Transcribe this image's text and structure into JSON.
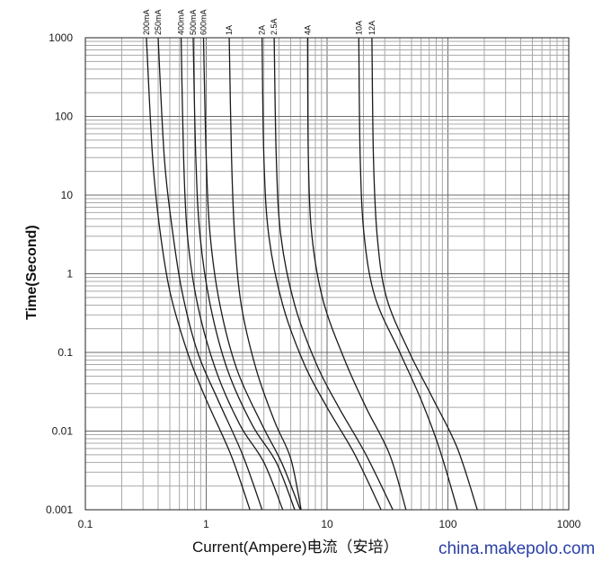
{
  "chart_data": {
    "type": "line",
    "xlabel": "Current(Ampere)电流（安培）",
    "ylabel": "Time(Second)",
    "x_scale": "log",
    "y_scale": "log",
    "xlim": [
      0.1,
      1000
    ],
    "ylim": [
      0.001,
      1000
    ],
    "grid": true,
    "x_ticks": [
      "0.1",
      "1",
      "10",
      "100",
      "1000"
    ],
    "y_ticks": [
      "1000",
      "100",
      "10",
      "1",
      "0.1",
      "0.01",
      "0.001"
    ],
    "series": [
      {
        "name": "200mA",
        "points": [
          [
            0.32,
            1000
          ],
          [
            0.36,
            30
          ],
          [
            0.41,
            4
          ],
          [
            0.5,
            0.6
          ],
          [
            0.7,
            0.1
          ],
          [
            1.0,
            0.025
          ],
          [
            1.6,
            0.005
          ],
          [
            2.3,
            0.001
          ]
        ]
      },
      {
        "name": "250mA",
        "points": [
          [
            0.4,
            1000
          ],
          [
            0.45,
            30
          ],
          [
            0.52,
            4
          ],
          [
            0.63,
            0.6
          ],
          [
            0.85,
            0.1
          ],
          [
            1.25,
            0.025
          ],
          [
            2.0,
            0.005
          ],
          [
            2.9,
            0.001
          ]
        ]
      },
      {
        "name": "400mA",
        "points": [
          [
            0.62,
            1000
          ],
          [
            0.65,
            30
          ],
          [
            0.7,
            3
          ],
          [
            0.85,
            0.4
          ],
          [
            1.2,
            0.06
          ],
          [
            1.9,
            0.012
          ],
          [
            3.0,
            0.004
          ],
          [
            4.3,
            0.001
          ]
        ]
      },
      {
        "name": "500mA",
        "points": [
          [
            0.78,
            1000
          ],
          [
            0.82,
            30
          ],
          [
            0.89,
            3
          ],
          [
            1.08,
            0.4
          ],
          [
            1.5,
            0.06
          ],
          [
            2.4,
            0.012
          ],
          [
            3.8,
            0.004
          ],
          [
            5.4,
            0.001
          ]
        ]
      },
      {
        "name": "600mA",
        "points": [
          [
            0.95,
            1000
          ],
          [
            1.0,
            30
          ],
          [
            1.08,
            3
          ],
          [
            1.3,
            0.4
          ],
          [
            1.8,
            0.06
          ],
          [
            2.9,
            0.012
          ],
          [
            4.2,
            0.004
          ],
          [
            6.0,
            0.001
          ]
        ]
      },
      {
        "name": "1A",
        "points": [
          [
            1.55,
            1000
          ],
          [
            1.62,
            30
          ],
          [
            1.72,
            3
          ],
          [
            1.95,
            0.4
          ],
          [
            2.6,
            0.06
          ],
          [
            3.7,
            0.013
          ],
          [
            5.0,
            0.0045
          ],
          [
            6.1,
            0.001
          ]
        ]
      },
      {
        "name": "2A",
        "points": [
          [
            2.9,
            1000
          ],
          [
            3.0,
            30
          ],
          [
            3.3,
            3
          ],
          [
            4.3,
            0.4
          ],
          [
            6.5,
            0.07
          ],
          [
            10,
            0.02
          ],
          [
            17,
            0.005
          ],
          [
            28,
            0.001
          ]
        ]
      },
      {
        "name": "2.5A",
        "points": [
          [
            3.65,
            1000
          ],
          [
            3.8,
            30
          ],
          [
            4.15,
            3
          ],
          [
            5.4,
            0.4
          ],
          [
            8.2,
            0.07
          ],
          [
            12.5,
            0.02
          ],
          [
            21,
            0.005
          ],
          [
            35,
            0.001
          ]
        ]
      },
      {
        "name": "4A",
        "points": [
          [
            6.9,
            1000
          ],
          [
            7.0,
            30
          ],
          [
            7.5,
            3
          ],
          [
            9.3,
            0.45
          ],
          [
            14,
            0.08
          ],
          [
            21,
            0.02
          ],
          [
            33,
            0.005
          ],
          [
            45,
            0.001
          ]
        ]
      },
      {
        "name": "10A",
        "points": [
          [
            18.3,
            1000
          ],
          [
            18.8,
            30
          ],
          [
            20.3,
            3
          ],
          [
            25,
            0.5
          ],
          [
            40,
            0.1
          ],
          [
            60,
            0.025
          ],
          [
            85,
            0.006
          ],
          [
            120,
            0.001
          ]
        ]
      },
      {
        "name": "12A",
        "points": [
          [
            23.5,
            1000
          ],
          [
            24.2,
            30
          ],
          [
            26,
            3
          ],
          [
            31,
            0.5
          ],
          [
            48,
            0.1
          ],
          [
            76,
            0.025
          ],
          [
            120,
            0.006
          ],
          [
            175,
            0.001
          ]
        ]
      }
    ]
  },
  "watermark": "china.makepolo.com"
}
